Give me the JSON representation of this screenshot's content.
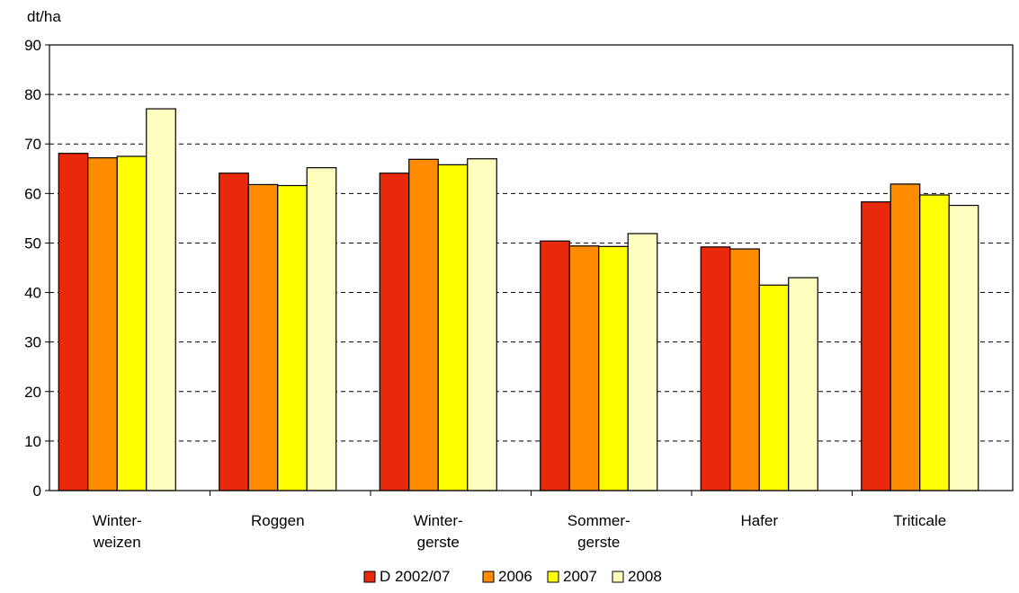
{
  "chart_data": {
    "type": "bar",
    "ylabel": "dt/ha",
    "ylim": [
      0,
      90
    ],
    "yticks": [
      0,
      10,
      20,
      30,
      40,
      50,
      60,
      70,
      80,
      90
    ],
    "grid": true,
    "legend_position": "bottom",
    "categories": [
      [
        "Winter-",
        "weizen"
      ],
      [
        "Roggen"
      ],
      [
        "Winter-",
        "gerste"
      ],
      [
        "Sommer-",
        "gerste"
      ],
      [
        "Hafer"
      ],
      [
        "Triticale"
      ]
    ],
    "series": [
      {
        "name": "D 2002/07",
        "color": "#e8290b",
        "values": [
          68.1,
          64.1,
          64.1,
          50.4,
          49.2,
          58.3
        ]
      },
      {
        "name": "2006",
        "color": "#ff8c00",
        "values": [
          67.2,
          61.8,
          66.9,
          49.4,
          48.8,
          61.9
        ]
      },
      {
        "name": "2007",
        "color": "#ffff00",
        "values": [
          67.5,
          61.6,
          65.8,
          49.3,
          41.5,
          59.7
        ]
      },
      {
        "name": "2008",
        "color": "#ffffc0",
        "values": [
          77.1,
          65.2,
          67.0,
          51.9,
          43.0,
          57.6
        ]
      }
    ]
  }
}
